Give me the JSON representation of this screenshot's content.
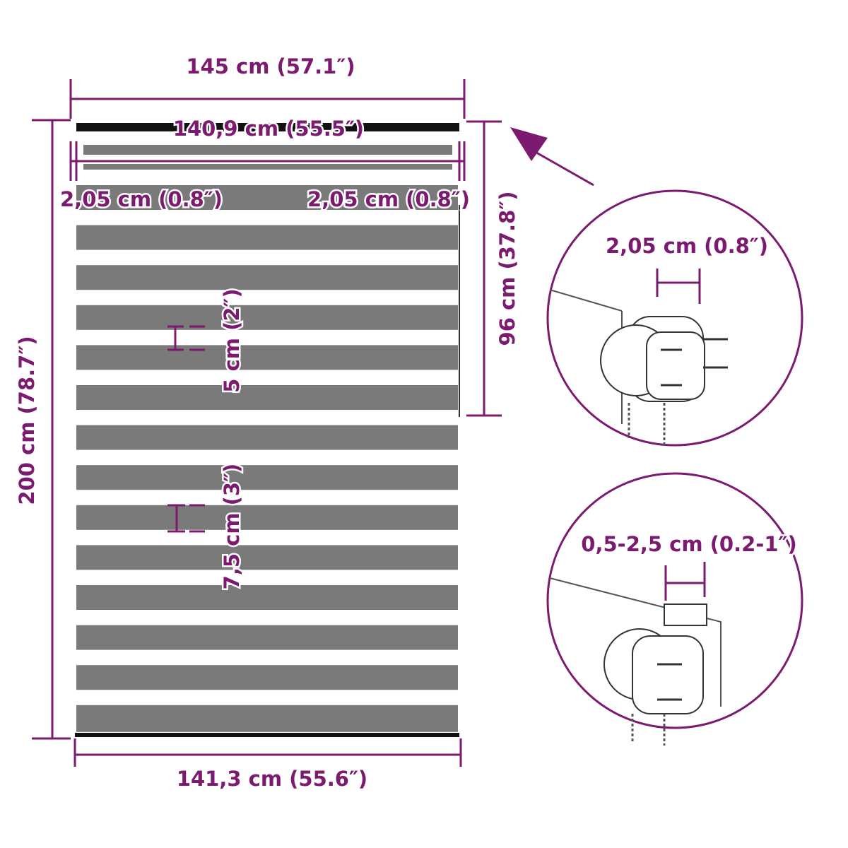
{
  "labels": {
    "total_width": "145 cm (57.1″)",
    "tube_width": "140,9 cm (55.5″)",
    "left_margin": "2,05 cm (0.8″)",
    "right_margin": "2,05 cm (0.8″)",
    "total_height": "200 cm (78.7″)",
    "partial_height": "96 cm (37.8″)",
    "narrow_stripe": "5 cm (2″)",
    "wide_stripe": "7,5 cm (3″)",
    "bottom_width": "141,3 cm (55.6″)",
    "detail_top": "2,05 cm (0.8″)",
    "detail_bottom": "0,5-2,5 cm (0.2-1″)"
  },
  "colors": {
    "dimension": "#7b1a6f",
    "fabric_stripe": "#7a7a7a",
    "rail": "#111111"
  }
}
